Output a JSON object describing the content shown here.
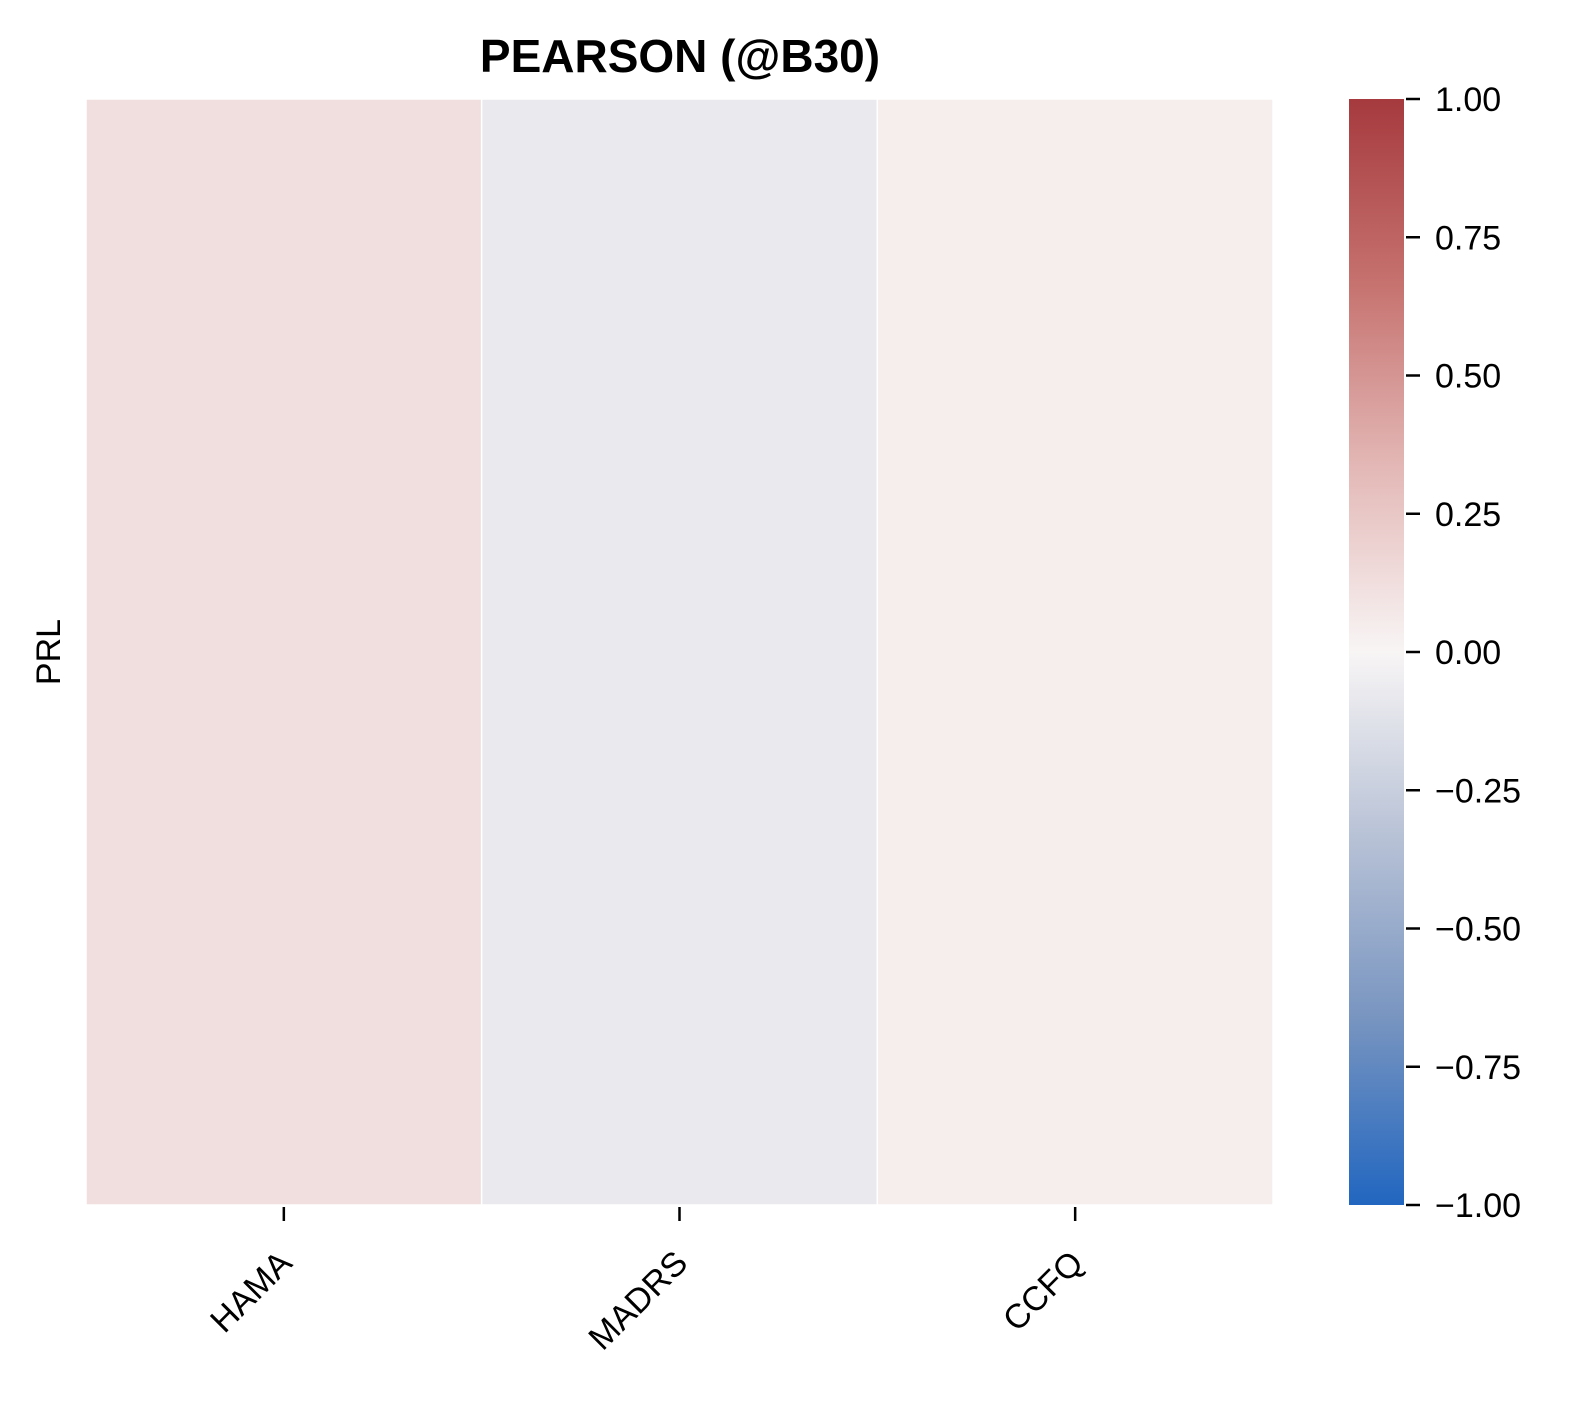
{
  "chart_data": {
    "type": "heatmap",
    "title": "PEARSON (@B30)",
    "xlabel": "",
    "ylabel": "",
    "x_categories": [
      "HAMA",
      "MADRS",
      "CCFQ"
    ],
    "y_categories": [
      "PRL"
    ],
    "values": [
      [
        0.12,
        -0.08,
        0.04
      ]
    ],
    "colorbar": {
      "vmin": -1.0,
      "vmax": 1.0,
      "ticks": [
        1.0,
        0.75,
        0.5,
        0.25,
        0.0,
        -0.25,
        -0.5,
        -0.75,
        -1.0
      ],
      "tick_labels": [
        "1.00",
        "0.75",
        "0.50",
        "0.25",
        "0.00",
        "−0.25",
        "−0.50",
        "−0.75",
        "−1.00"
      ],
      "colormap": "vlag",
      "color_stops": [
        "#2166c0",
        "#7794c0",
        "#b8c2d6",
        "#f8f5f5",
        "#e3b8b6",
        "#c6726f",
        "#a63a3e"
      ]
    },
    "grid": false,
    "legend": "colorbar-right"
  }
}
